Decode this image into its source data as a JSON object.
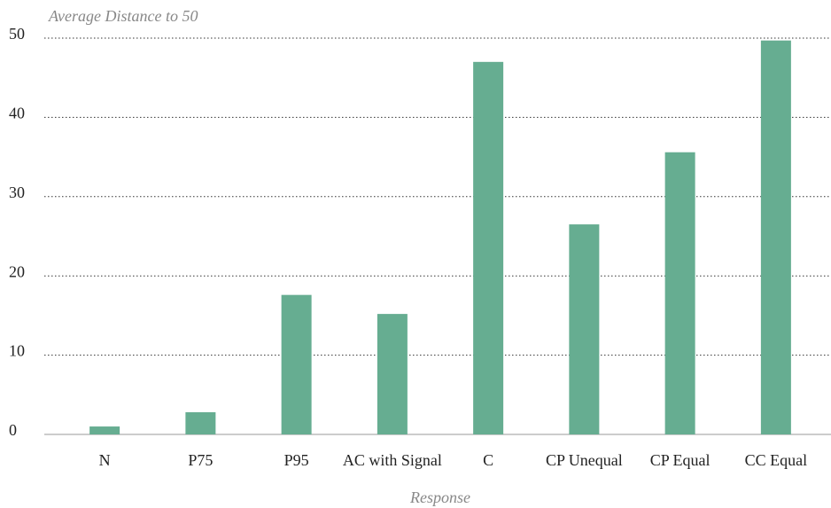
{
  "chart_data": {
    "type": "bar",
    "title": "Average Distance to 50",
    "x_label": "Response",
    "categories": [
      "N",
      "P75",
      "P95",
      "AC with Signal",
      "C",
      "CP Unequal",
      "CP Equal",
      "CC Equal"
    ],
    "values": [
      1.0,
      2.8,
      17.6,
      15.2,
      47.0,
      26.5,
      35.6,
      49.7
    ],
    "color": "#66ad91",
    "ylim": [
      0,
      50
    ],
    "yticks": [
      0,
      10,
      20,
      30,
      40,
      50
    ],
    "grid": true
  }
}
